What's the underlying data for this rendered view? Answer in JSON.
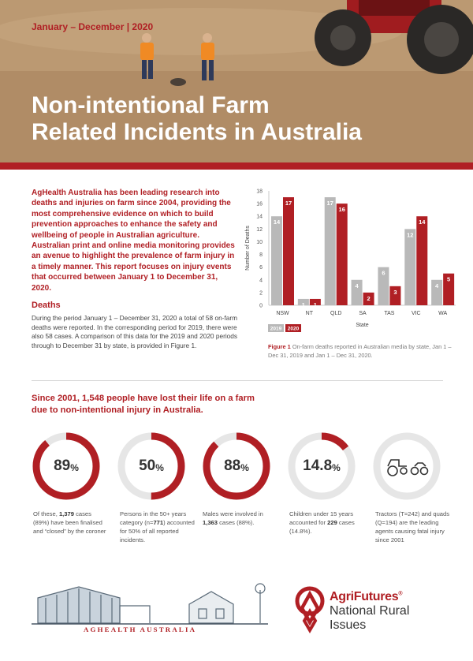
{
  "header": {
    "date_range": "January – December | 2020",
    "title_line1": "Non-intentional Farm",
    "title_line2": "Related Incidents in Australia"
  },
  "intro": {
    "text": "AgHealth Australia has been leading research into deaths and injuries on farm since 2004, providing the most comprehensive evidence on which to build prevention approaches to enhance the safety and wellbeing of people in Australian agriculture. Australian print and online media monitoring provides an avenue to highlight the prevalence of farm injury in a timely manner. This report focuses on injury events that occurred between January 1 to December 31, 2020."
  },
  "deaths": {
    "heading": "Deaths",
    "text": "During the period January 1 – December 31, 2020 a total of 58 on-farm deaths were reported. In the corresponding period for 2019, there were also 58 cases. A comparison of this data for the 2019 and 2020 periods through to December 31 by state, is provided in Figure 1."
  },
  "chart_data": {
    "type": "bar",
    "categories": [
      "NSW",
      "NT",
      "QLD",
      "SA",
      "TAS",
      "VIC",
      "WA"
    ],
    "series": [
      {
        "name": "2019",
        "values": [
          14,
          1,
          17,
          4,
          6,
          12,
          4
        ],
        "color": "#b9b9b9"
      },
      {
        "name": "2020",
        "values": [
          17,
          1,
          16,
          2,
          3,
          14,
          5
        ],
        "color": "#b01f24"
      }
    ],
    "xlabel": "State",
    "ylabel": "Number of Deaths",
    "ylim": [
      0,
      18
    ],
    "yticks": [
      0,
      2,
      4,
      6,
      8,
      10,
      12,
      14,
      16,
      18
    ],
    "grid": false,
    "legend_position": "bottom-left"
  },
  "figure": {
    "label": "Figure 1",
    "caption": "On-farm deaths reported in Australian media by state, Jan 1 – Dec 31, 2019 and Jan 1 – Dec 31, 2020."
  },
  "since": {
    "text": "Since 2001, 1,548 people have lost their life on a farm due to non-intentional injury in Australia."
  },
  "stats": [
    {
      "value": "89",
      "suffix": "%",
      "fraction": 0.89,
      "pre": "Of these, ",
      "bold": "1,379",
      "post": " cases (89%) have been finalised and “closed” by the coroner"
    },
    {
      "value": "50",
      "suffix": "%",
      "fraction": 0.5,
      "pre": "Persons in the 50+ years category (n=",
      "bold": "771",
      "post": ") accounted for 50% of all reported incidents."
    },
    {
      "value": "88",
      "suffix": "%",
      "fraction": 0.88,
      "pre": "Males were involved in ",
      "bold": "1,363",
      "post": " cases (88%)."
    },
    {
      "value": "14.8",
      "suffix": "%",
      "fraction": 0.148,
      "pre": "Children under 15 years accounted for ",
      "bold": "229",
      "post": " cases (14.8%)."
    },
    {
      "icon": "tractor-quad-icon",
      "pre": "Tractors (T=242) and quads (Q=194) are the leading agents causing fatal injury since 2001",
      "bold": "",
      "post": ""
    }
  ],
  "footer": {
    "aghealth_label": "AGHEALTH AUSTRALIA",
    "agrifutures_brand": "AgriFutures",
    "agrifutures_mark": "®",
    "agrifutures_sub1": "National Rural",
    "agrifutures_sub2": "Issues"
  },
  "colors": {
    "accent": "#b01f24",
    "ring_track": "#e6e6e6",
    "bar_2019": "#b9b9b9",
    "bar_2020": "#b01f24"
  }
}
